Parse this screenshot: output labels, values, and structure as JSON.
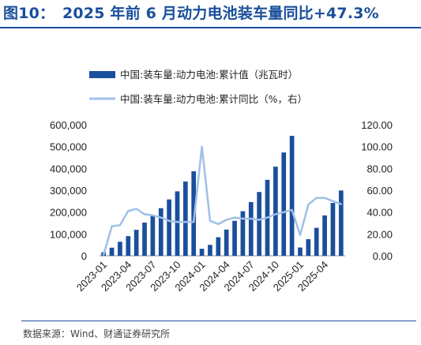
{
  "figure": {
    "title": "图10：　2025 年前 6 月动力电池装车量同比+47.3%",
    "source": "数据来源：Wind、财通证券研究所"
  },
  "chart_data": {
    "type": "bar+line",
    "x": [
      "2023-01",
      "2023-02",
      "2023-03",
      "2023-04",
      "2023-05",
      "2023-06",
      "2023-07",
      "2023-08",
      "2023-09",
      "2023-10",
      "2023-11",
      "2023-12",
      "2024-01",
      "2024-02",
      "2024-03",
      "2024-04",
      "2024-05",
      "2024-06",
      "2024-07",
      "2024-08",
      "2024-09",
      "2024-10",
      "2024-11",
      "2024-12",
      "2025-01",
      "2025-02",
      "2025-03",
      "2025-04",
      "2025-05",
      "2025-06"
    ],
    "x_tick_labels": [
      "2023-01",
      "2023-04",
      "2023-07",
      "2023-10",
      "2024-01",
      "2024-04",
      "2024-07",
      "2024-10",
      "2025-01",
      "2025-04"
    ],
    "series": [
      {
        "name": "中国:装车量:动力电池:累计值（兆瓦时）",
        "type": "bar",
        "axis": "left",
        "color": "#1a4f9c",
        "values": [
          16000,
          37000,
          64000,
          90000,
          119000,
          152000,
          184000,
          218000,
          258000,
          295000,
          340000,
          387000,
          32000,
          50000,
          85000,
          120000,
          160000,
          204000,
          246000,
          292000,
          348000,
          408000,
          473000,
          549000,
          38000,
          76000,
          128000,
          185000,
          242000,
          299000
        ]
      },
      {
        "name": "中国:装车量:动力电池:累计同比（%，右）",
        "type": "line",
        "axis": "right",
        "color": "#9fc0e8",
        "values": [
          1,
          27,
          28,
          41,
          43,
          38,
          37,
          35,
          32,
          31,
          31,
          31,
          100,
          32,
          29,
          33,
          35,
          34,
          34,
          33,
          35,
          38,
          40,
          42,
          19,
          47,
          53,
          53,
          50,
          47.3
        ]
      }
    ],
    "y_left": {
      "min": 0,
      "max": 600000,
      "ticks": [
        "0",
        "100,000",
        "200,000",
        "300,000",
        "400,000",
        "500,000",
        "600,000"
      ]
    },
    "y_right": {
      "min": 0,
      "max": 120,
      "ticks": [
        "0.00",
        "20.00",
        "40.00",
        "60.00",
        "80.00",
        "100.00",
        "120.00"
      ]
    },
    "legend": {
      "position": "top-center"
    },
    "grid": false
  }
}
